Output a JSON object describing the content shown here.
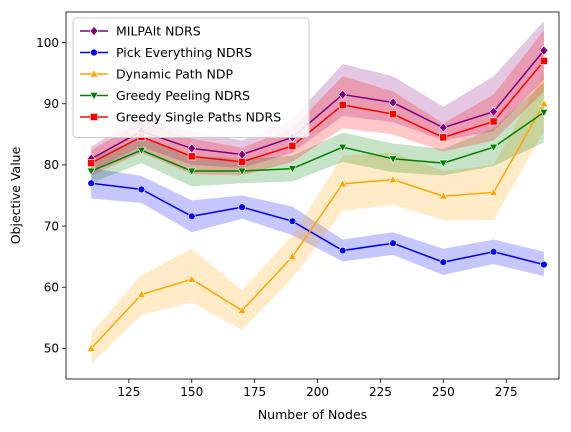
{
  "chart_data": {
    "type": "line",
    "xlabel": "Number of Nodes",
    "ylabel": "Objective Value",
    "xlim": [
      100,
      296
    ],
    "ylim": [
      45,
      105
    ],
    "xticks": [
      125,
      150,
      175,
      200,
      225,
      250,
      275
    ],
    "yticks": [
      50,
      60,
      70,
      80,
      90,
      100
    ],
    "legend_position": "top-left",
    "grid": false,
    "x": [
      110,
      130,
      150,
      170,
      190,
      210,
      230,
      250,
      270,
      290
    ],
    "series": [
      {
        "name": "MILPAlt NDRS",
        "color": "#800080",
        "marker": "diamond",
        "values": [
          81.0,
          85.5,
          82.7,
          81.7,
          84.5,
          91.5,
          90.2,
          86.1,
          88.7,
          98.7
        ],
        "lower": [
          79.0,
          83.0,
          80.0,
          79.5,
          82.0,
          88.0,
          87.0,
          84.0,
          85.5,
          94.0
        ],
        "upper": [
          83.0,
          88.0,
          85.5,
          84.0,
          87.5,
          96.5,
          94.5,
          89.5,
          94.5,
          103.5
        ]
      },
      {
        "name": "Pick Everything NDRS",
        "color": "#0000ff",
        "marker": "circle",
        "values": [
          77.0,
          76.0,
          71.6,
          73.1,
          70.8,
          66.0,
          67.2,
          64.1,
          65.8,
          63.7
        ],
        "lower": [
          74.5,
          73.8,
          69.0,
          71.2,
          68.5,
          64.2,
          65.3,
          62.0,
          63.8,
          61.8
        ],
        "upper": [
          79.5,
          78.2,
          74.2,
          75.0,
          73.2,
          67.8,
          69.0,
          66.3,
          67.8,
          65.8
        ]
      },
      {
        "name": "Dynamic Path NDP",
        "color": "#ffa500",
        "marker": "triangle-up",
        "values": [
          50.0,
          58.8,
          61.3,
          56.2,
          65.0,
          76.9,
          77.6,
          74.9,
          75.5,
          90.0
        ],
        "lower": [
          47.5,
          55.5,
          57.5,
          53.0,
          61.5,
          72.5,
          73.5,
          71.0,
          71.0,
          85.5
        ],
        "upper": [
          52.5,
          62.0,
          66.3,
          59.5,
          68.5,
          81.5,
          82.0,
          79.0,
          80.0,
          95.0
        ]
      },
      {
        "name": "Greedy Peeling NDRS",
        "color": "#008000",
        "marker": "triangle-down",
        "values": [
          79.0,
          82.4,
          79.0,
          79.0,
          79.4,
          82.9,
          81.0,
          80.3,
          82.9,
          88.6
        ],
        "lower": [
          77.0,
          80.3,
          76.5,
          77.0,
          77.3,
          80.5,
          78.8,
          78.3,
          79.8,
          83.7
        ],
        "upper": [
          81.0,
          84.6,
          81.5,
          81.0,
          81.5,
          85.3,
          83.5,
          82.6,
          86.0,
          93.5
        ]
      },
      {
        "name": "Greedy Single Paths NDRS",
        "color": "#ff0000",
        "marker": "square",
        "values": [
          80.3,
          84.6,
          81.4,
          80.5,
          83.1,
          89.8,
          88.3,
          84.5,
          87.1,
          97.0
        ],
        "lower": [
          78.2,
          82.0,
          78.5,
          78.3,
          80.5,
          86.0,
          85.0,
          82.2,
          84.0,
          92.0
        ],
        "upper": [
          82.4,
          87.2,
          84.3,
          82.8,
          86.0,
          94.5,
          92.0,
          86.8,
          91.5,
          102.0
        ]
      }
    ]
  }
}
